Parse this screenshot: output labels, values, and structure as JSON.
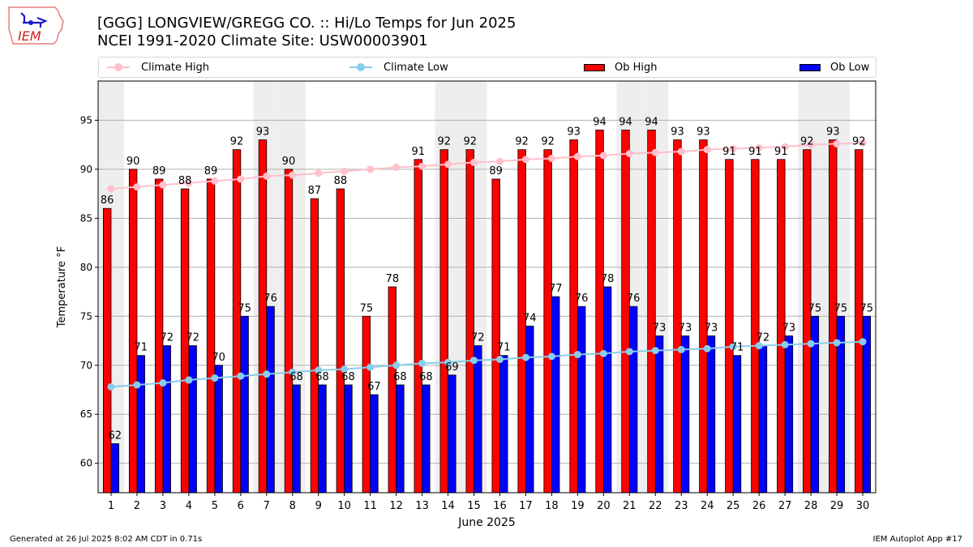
{
  "header": {
    "title_line1": "[GGG] LONGVIEW/GREGG CO. :: Hi/Lo Temps for Jun 2025",
    "title_line2": "NCEI 1991-2020 Climate Site: USW00003901",
    "logo_text": "IEM"
  },
  "legend": [
    {
      "label": "Climate High",
      "kind": "line",
      "color": "#ffc0cb"
    },
    {
      "label": "Climate Low",
      "kind": "line",
      "color": "#87ceeb"
    },
    {
      "label": "Ob High",
      "kind": "bar",
      "color": "#ff0000"
    },
    {
      "label": "Ob Low",
      "kind": "bar",
      "color": "#0000ff"
    }
  ],
  "footer": {
    "generated": "Generated at 26 Jul 2025 8:02 AM CDT in 0.71s",
    "app": "IEM Autoplot App #17"
  },
  "chart_data": {
    "type": "bar",
    "title": "[GGG] LONGVIEW/GREGG CO. :: Hi/Lo Temps for Jun 2025",
    "subtitle": "NCEI 1991-2020 Climate Site: USW00003901",
    "xlabel": "June 2025",
    "ylabel": "Temperature °F",
    "xlim": [
      0.5,
      30.5
    ],
    "ylim": [
      57,
      99
    ],
    "yticks": [
      60,
      65,
      70,
      75,
      80,
      85,
      90,
      95
    ],
    "grid": "y",
    "legend_position": "top",
    "categories": [
      1,
      2,
      3,
      4,
      5,
      6,
      7,
      8,
      9,
      10,
      11,
      12,
      13,
      14,
      15,
      16,
      17,
      18,
      19,
      20,
      21,
      22,
      23,
      24,
      25,
      26,
      27,
      28,
      29,
      30
    ],
    "weekend_days": [
      1,
      7,
      8,
      14,
      15,
      21,
      22,
      28,
      29
    ],
    "shade_color": "#eeeeee",
    "series": [
      {
        "name": "Ob High",
        "type": "bar",
        "color": "#ff0000",
        "values": [
          86,
          90,
          89,
          88,
          89,
          92,
          93,
          90,
          87,
          88,
          75,
          78,
          91,
          92,
          92,
          89,
          92,
          92,
          93,
          94,
          94,
          94,
          93,
          93,
          91,
          91,
          91,
          92,
          93,
          92
        ]
      },
      {
        "name": "Ob Low",
        "type": "bar",
        "color": "#0000ff",
        "values": [
          62,
          71,
          72,
          72,
          70,
          75,
          76,
          68,
          68,
          68,
          67,
          68,
          68,
          69,
          72,
          71,
          74,
          77,
          76,
          78,
          76,
          73,
          73,
          73,
          71,
          72,
          73,
          75,
          75,
          75
        ]
      },
      {
        "name": "Climate High",
        "type": "line",
        "color": "#ffc0cb",
        "values": [
          88.0,
          88.2,
          88.4,
          88.6,
          88.8,
          89.0,
          89.3,
          89.4,
          89.6,
          89.8,
          90.0,
          90.2,
          90.3,
          90.5,
          90.7,
          90.8,
          91.0,
          91.1,
          91.3,
          91.4,
          91.6,
          91.7,
          91.8,
          92.0,
          92.1,
          92.2,
          92.3,
          92.5,
          92.6,
          92.7
        ]
      },
      {
        "name": "Climate Low",
        "type": "line",
        "color": "#87ceeb",
        "values": [
          67.8,
          68.0,
          68.2,
          68.5,
          68.7,
          68.9,
          69.1,
          69.3,
          69.5,
          69.6,
          69.8,
          70.0,
          70.2,
          70.3,
          70.5,
          70.6,
          70.8,
          70.9,
          71.1,
          71.2,
          71.4,
          71.5,
          71.6,
          71.7,
          71.9,
          72.0,
          72.1,
          72.2,
          72.3,
          72.4
        ]
      }
    ]
  }
}
